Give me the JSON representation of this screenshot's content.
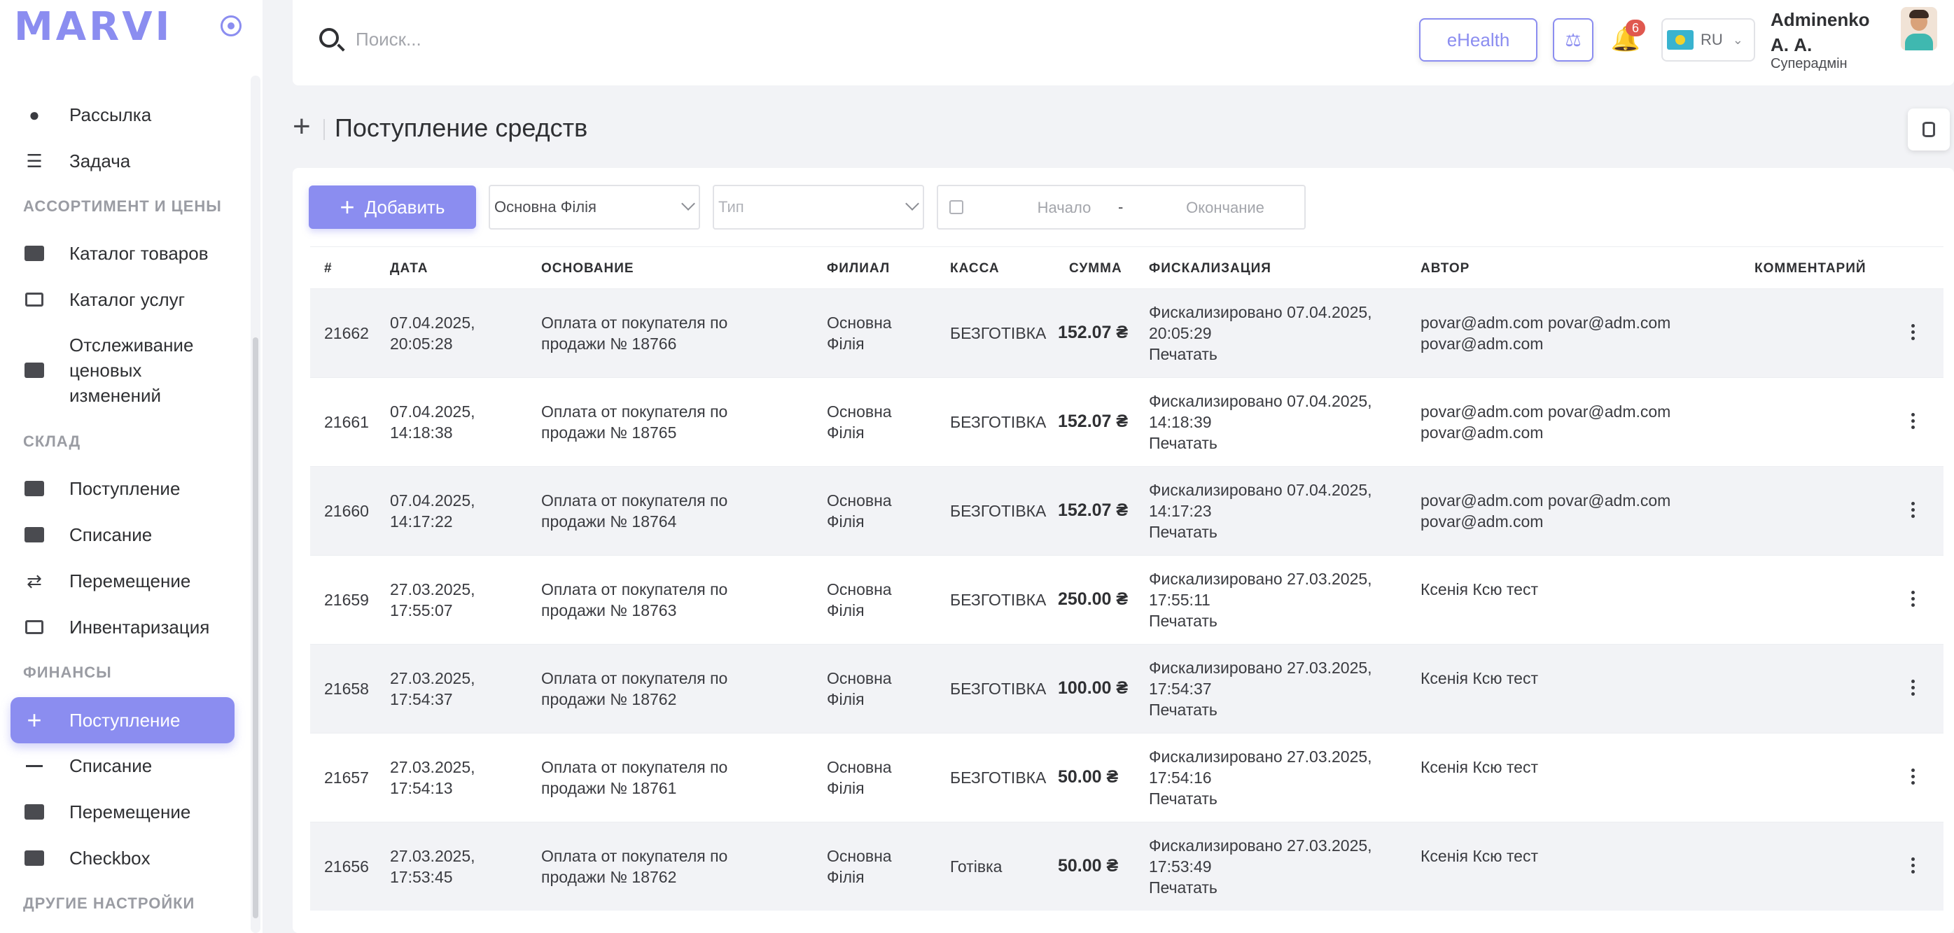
{
  "sidebar": {
    "logo": "MARVI",
    "items_top": [
      {
        "label": "Рассылка",
        "icon": "user-icon"
      },
      {
        "label": "Задача",
        "icon": "checklist-icon"
      }
    ],
    "section_assortment": "АССОРТИМЕНТ И ЦЕНЫ",
    "items_assortment": [
      {
        "label": "Каталог товаров",
        "icon": "product-catalog-icon"
      },
      {
        "label": "Каталог услуг",
        "icon": "service-catalog-icon"
      },
      {
        "label": "Отслеживание ценовых изменений",
        "icon": "price-tracking-icon"
      }
    ],
    "section_warehouse": "СКЛАД",
    "items_warehouse": [
      {
        "label": "Поступление",
        "icon": "folder-plus-icon"
      },
      {
        "label": "Списание",
        "icon": "folder-minus-icon"
      },
      {
        "label": "Перемещение",
        "icon": "transfer-arrows-icon"
      },
      {
        "label": "Инвентаризация",
        "icon": "inventory-check-icon"
      }
    ],
    "section_finance": "ФИНАНСЫ",
    "items_finance": [
      {
        "label": "Поступление",
        "icon": "plus-icon"
      },
      {
        "label": "Списание",
        "icon": "minus-icon"
      },
      {
        "label": "Перемещение",
        "icon": "money-transfer-icon"
      },
      {
        "label": "Checkbox",
        "icon": "checkbox-cash-icon"
      }
    ],
    "section_other": "ДРУГИЕ НАСТРОЙКИ"
  },
  "header": {
    "search_placeholder": "Поиск...",
    "ehealth_label": "eHealth",
    "notifications_count": "6",
    "language": "RU",
    "user_name": "Adminenko А. А.",
    "user_role": "Суперадмін"
  },
  "page": {
    "title": "Поступление средств"
  },
  "toolbar": {
    "add_label": "Добавить",
    "branch_value": "Основна Філія",
    "type_placeholder": "Тип",
    "date_start_placeholder": "Начало",
    "date_separator": "-",
    "date_end_placeholder": "Окончание"
  },
  "table": {
    "columns": [
      "#",
      "ДАТА",
      "ОСНОВАНИЕ",
      "ФИЛИАЛ",
      "КАССА",
      "СУММА",
      "ФИСКАЛИЗАЦИЯ",
      "АВТОР",
      "КОММЕНТАРИЙ"
    ],
    "rows": [
      {
        "id": "21662",
        "date": "07.04.2025,",
        "time": "20:05:28",
        "basis1": "Оплата от покупателя по",
        "basis2": "продажи № 18766",
        "branch1": "Основна",
        "branch2": "Філія",
        "cash": "БЕЗГОТІВКА",
        "sum": "152.07 ₴",
        "fisc1": "Фискализировано 07.04.2025,",
        "fisc2": "20:05:29",
        "print": "Печатать",
        "author1": "povar@adm.com povar@adm.com",
        "author2": "povar@adm.com",
        "comment": ""
      },
      {
        "id": "21661",
        "date": "07.04.2025,",
        "time": "14:18:38",
        "basis1": "Оплата от покупателя по",
        "basis2": "продажи № 18765",
        "branch1": "Основна",
        "branch2": "Філія",
        "cash": "БЕЗГОТІВКА",
        "sum": "152.07 ₴",
        "fisc1": "Фискализировано 07.04.2025,",
        "fisc2": "14:18:39",
        "print": "Печатать",
        "author1": "povar@adm.com povar@adm.com",
        "author2": "povar@adm.com",
        "comment": ""
      },
      {
        "id": "21660",
        "date": "07.04.2025,",
        "time": "14:17:22",
        "basis1": "Оплата от покупателя по",
        "basis2": "продажи № 18764",
        "branch1": "Основна",
        "branch2": "Філія",
        "cash": "БЕЗГОТІВКА",
        "sum": "152.07 ₴",
        "fisc1": "Фискализировано 07.04.2025,",
        "fisc2": "14:17:23",
        "print": "Печатать",
        "author1": "povar@adm.com povar@adm.com",
        "author2": "povar@adm.com",
        "comment": ""
      },
      {
        "id": "21659",
        "date": "27.03.2025,",
        "time": "17:55:07",
        "basis1": "Оплата от покупателя по",
        "basis2": "продажи № 18763",
        "branch1": "Основна",
        "branch2": "Філія",
        "cash": "БЕЗГОТІВКА",
        "sum": "250.00 ₴",
        "fisc1": "Фискализировано 27.03.2025,",
        "fisc2": "17:55:11",
        "print": "Печатать",
        "author1": "Ксенія Ксю тест",
        "author2": "",
        "comment": ""
      },
      {
        "id": "21658",
        "date": "27.03.2025,",
        "time": "17:54:37",
        "basis1": "Оплата от покупателя по",
        "basis2": "продажи № 18762",
        "branch1": "Основна",
        "branch2": "Філія",
        "cash": "БЕЗГОТІВКА",
        "sum": "100.00 ₴",
        "fisc1": "Фискализировано 27.03.2025,",
        "fisc2": "17:54:37",
        "print": "Печатать",
        "author1": "Ксенія Ксю тест",
        "author2": "",
        "comment": ""
      },
      {
        "id": "21657",
        "date": "27.03.2025,",
        "time": "17:54:13",
        "basis1": "Оплата от покупателя по",
        "basis2": "продажи № 18761",
        "branch1": "Основна",
        "branch2": "Філія",
        "cash": "БЕЗГОТІВКА",
        "sum": "50.00 ₴",
        "fisc1": "Фискализировано 27.03.2025,",
        "fisc2": "17:54:16",
        "print": "Печатать",
        "author1": "Ксенія Ксю тест",
        "author2": "",
        "comment": ""
      },
      {
        "id": "21656",
        "date": "27.03.2025,",
        "time": "17:53:45",
        "basis1": "Оплата от покупателя по",
        "basis2": "продажи № 18762",
        "branch1": "Основна",
        "branch2": "Філія",
        "cash": "Готівка",
        "sum": "50.00 ₴",
        "fisc1": "Фискализировано 27.03.2025,",
        "fisc2": "17:53:49",
        "print": "Печатать",
        "author1": "Ксенія Ксю тест",
        "author2": "",
        "comment": ""
      }
    ]
  },
  "colors": {
    "accent": "#8b8df0",
    "badge": "#e0584f",
    "text": "#2f3033"
  }
}
